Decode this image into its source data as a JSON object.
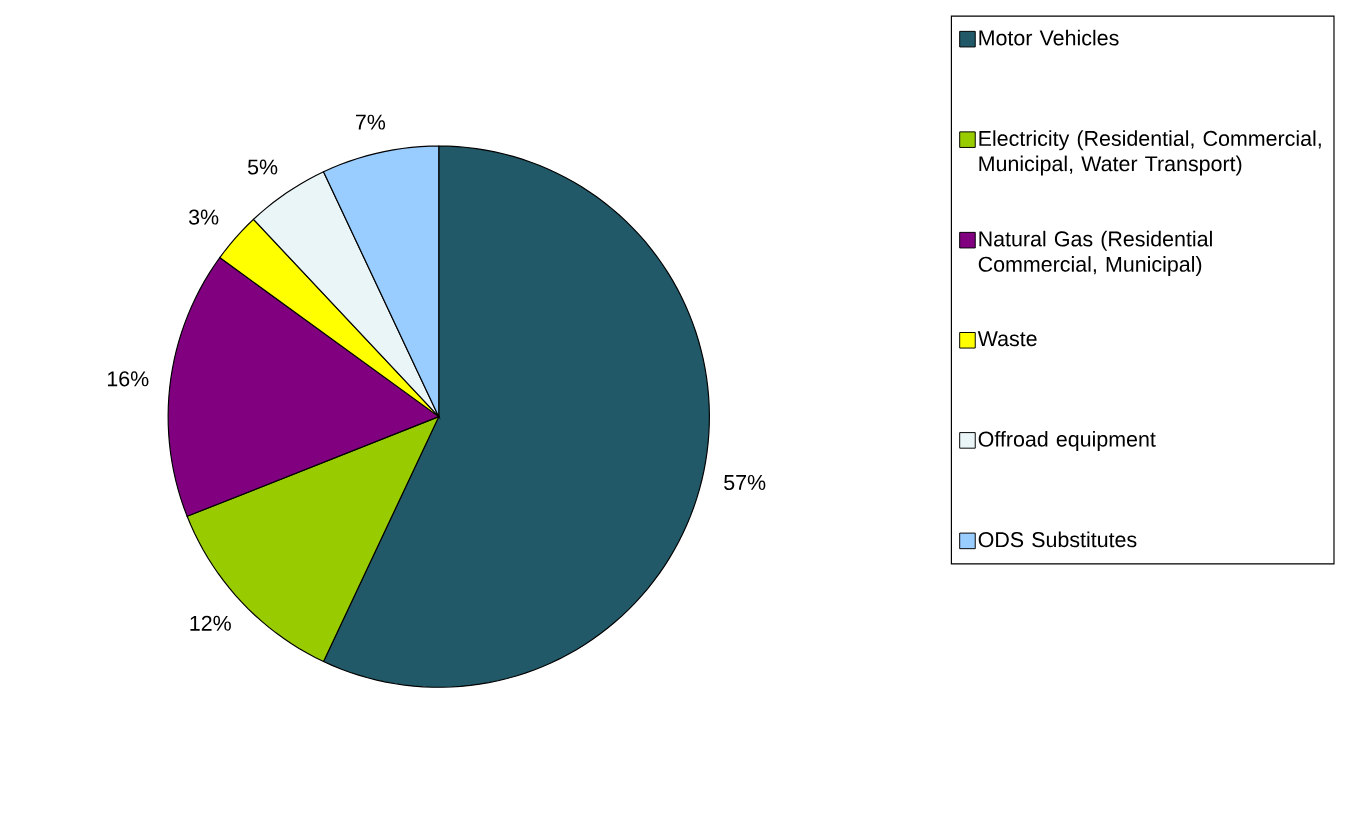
{
  "chart_data": {
    "type": "pie",
    "categories": [
      "Motor Vehicles",
      "Electricity (Residential, Commercial, Municipal, Water Transport)",
      "Natural Gas (Residential Commercial, Municipal)",
      "Waste",
      "Offroad equipment",
      "ODS Substitutes"
    ],
    "values": [
      57,
      12,
      16,
      3,
      5,
      7
    ],
    "value_labels": [
      "57%",
      "12%",
      "16%",
      "3%",
      "5%",
      "7%"
    ],
    "colors": [
      "#215968",
      "#99cc00",
      "#800080",
      "#ffff00",
      "#eaf5f8",
      "#99ccff"
    ],
    "legend": "right"
  }
}
